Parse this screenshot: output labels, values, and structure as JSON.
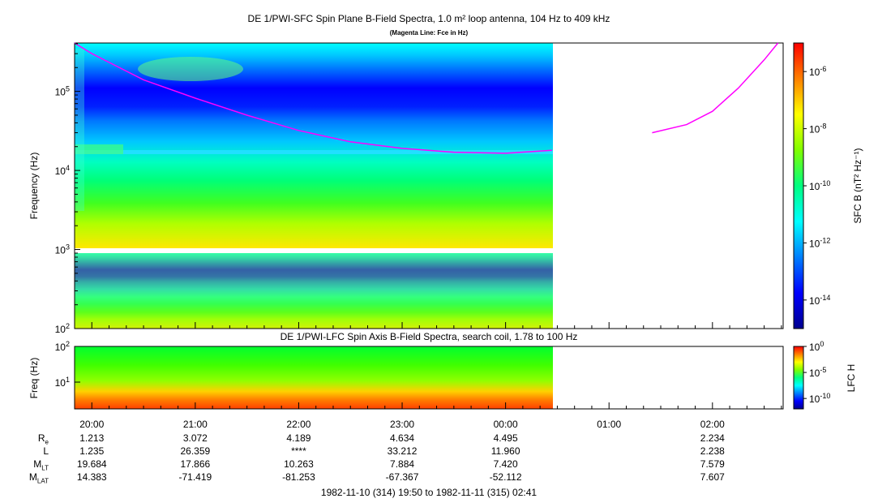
{
  "top_panel": {
    "title": "DE 1/PWI-SFC  Spin Plane B-Field Spectra, 1.0 m² loop antenna, 104 Hz to 409 kHz",
    "subtitle": "(Magenta Line: Fce in Hz)",
    "ylabel": "Frequency (Hz)",
    "colorbar_label": "SFC B (nT² Hz⁻¹)",
    "y_ticks": [
      {
        "base": "10",
        "exp": "2",
        "v": 2
      },
      {
        "base": "10",
        "exp": "3",
        "v": 3
      },
      {
        "base": "10",
        "exp": "4",
        "v": 4
      },
      {
        "base": "10",
        "exp": "5",
        "v": 5
      }
    ],
    "colorbar_ticks": [
      {
        "base": "10",
        "exp": "-6",
        "v": -6
      },
      {
        "base": "10",
        "exp": "-8",
        "v": -8
      },
      {
        "base": "10",
        "exp": "-10",
        "v": -10
      },
      {
        "base": "10",
        "exp": "-12",
        "v": -12
      },
      {
        "base": "10",
        "exp": "-14",
        "v": -14
      }
    ]
  },
  "bottom_panel": {
    "title": "DE 1/PWI-LFC  Spin Axis B-Field Spectra, search coil, 1.78 to 100 Hz",
    "ylabel": "Freq (Hz)",
    "colorbar_label": "LFC H",
    "y_ticks": [
      {
        "base": "10",
        "exp": "1",
        "v": 1
      },
      {
        "base": "10",
        "exp": "2",
        "v": 2
      }
    ],
    "colorbar_ticks": [
      {
        "base": "10",
        "exp": "0",
        "v": 0
      },
      {
        "base": "10",
        "exp": "-5",
        "v": -5
      },
      {
        "base": "10",
        "exp": "-10",
        "v": -10
      }
    ]
  },
  "time_axis": {
    "tick_labels": [
      "20:00",
      "21:00",
      "22:00",
      "23:00",
      "00:00",
      "01:00",
      "02:00"
    ],
    "range_label": "1982-11-10 (314) 19:50 to 1982-11-11 (315) 02:41"
  },
  "ephemeris": {
    "rows": [
      {
        "label": "R",
        "sub": "e",
        "values": [
          "1.213",
          "3.072",
          "4.189",
          "4.634",
          "4.495",
          "",
          "2.234"
        ]
      },
      {
        "label": "L",
        "sub": "",
        "values": [
          "1.235",
          "26.359",
          "****",
          "33.212",
          "11.960",
          "",
          "2.238"
        ]
      },
      {
        "label": "M",
        "sub": "LT",
        "values": [
          "19.684",
          "17.866",
          "10.263",
          "7.884",
          "7.420",
          "",
          "7.579"
        ]
      },
      {
        "label": "M",
        "sub": "LAT",
        "values": [
          "14.383",
          "-71.419",
          "-81.253",
          "-67.367",
          "-52.112",
          "",
          "7.607"
        ]
      }
    ]
  },
  "chart_data": [
    {
      "type": "heatmap",
      "title": "DE 1/PWI-SFC  Spin Plane B-Field Spectra, 1.0 m² loop antenna, 104 Hz to 409 kHz",
      "ylabel": "Frequency (Hz)",
      "colorbar_label": "SFC B (nT² Hz⁻¹)",
      "y_scale": "log",
      "ylim": [
        100,
        409000
      ],
      "colorbar_range": [
        1e-15,
        1e-05
      ],
      "x_range": [
        "1982-11-10 19:50",
        "1982-11-11 02:41"
      ],
      "data_ends": "00:27",
      "series": [
        {
          "name": "Fce",
          "color": "#ff00ff",
          "segments": [
            {
              "x": [
                "19:50",
                "20:00",
                "20:30",
                "21:00",
                "21:30",
                "22:00",
                "22:30",
                "23:00",
                "23:30",
                "00:00",
                "00:27"
              ],
              "y": [
                409000,
                300000,
                140000,
                82000,
                50000,
                32000,
                23000,
                19000,
                17000,
                16500,
                18000
              ]
            },
            {
              "x": [
                "01:25",
                "01:45",
                "02:00",
                "02:15",
                "02:30",
                "02:38"
              ],
              "y": [
                30000,
                38000,
                56000,
                110000,
                250000,
                409000
              ]
            }
          ]
        }
      ]
    },
    {
      "type": "heatmap",
      "title": "DE 1/PWI-LFC  Spin Axis B-Field Spectra, search coil, 1.78 to 100 Hz",
      "ylabel": "Freq (Hz)",
      "colorbar_label": "LFC H",
      "y_scale": "log",
      "ylim": [
        1.78,
        100
      ],
      "colorbar_range": [
        1e-12,
        1
      ],
      "x_range": [
        "1982-11-10 19:50",
        "1982-11-11 02:41"
      ],
      "data_ends": "00:27"
    }
  ],
  "colors": {
    "fce_line": "#ff00ff",
    "background": "#ffffff"
  }
}
